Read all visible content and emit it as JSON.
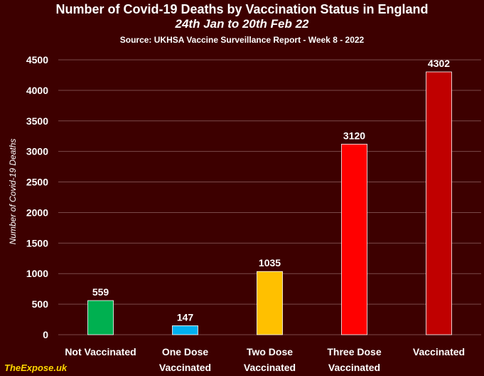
{
  "header": {
    "title": "Number of Covid-19 Deaths by Vaccination Status in England",
    "subtitle": "24th Jan to 20th Feb 22",
    "source": "Source: UKHSA Vaccine Surveillance Report - Week 8 - 2022"
  },
  "watermark": "TheExpose.uk",
  "colors": {
    "background": "#3d0000",
    "gridline": "#7a4a4a",
    "text": "#ffffff",
    "watermark": "#ffd700"
  },
  "chart_data": {
    "type": "bar",
    "title": "Number of Covid-19 Deaths by Vaccination Status in England",
    "subtitle": "24th Jan to 20th Feb 22",
    "xlabel": "",
    "ylabel": "Number of Covid-19 Deaths",
    "ylim": [
      0,
      4500
    ],
    "yticks": [
      0,
      500,
      1000,
      1500,
      2000,
      2500,
      3000,
      3500,
      4000,
      4500
    ],
    "grid": true,
    "categories": [
      [
        "Not Vaccinated"
      ],
      [
        "One Dose",
        "Vaccinated"
      ],
      [
        "Two Dose",
        "Vaccinated"
      ],
      [
        "Three Dose",
        "Vaccinated"
      ],
      [
        "Vaccinated"
      ]
    ],
    "values": [
      559,
      147,
      1035,
      3120,
      4302
    ],
    "bar_colors": [
      "#00b050",
      "#00b0f0",
      "#ffc000",
      "#ff0000",
      "#c00000"
    ]
  }
}
